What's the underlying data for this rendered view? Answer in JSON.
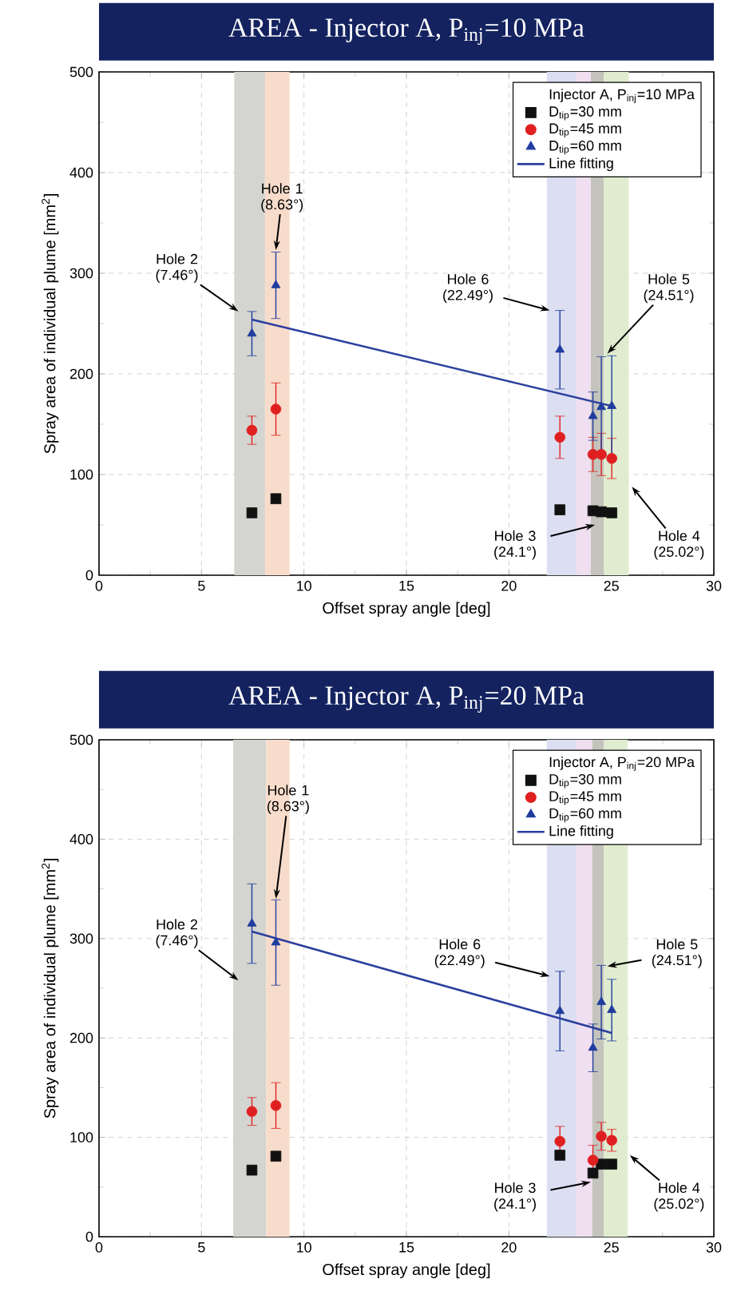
{
  "chart_data": [
    {
      "type": "scatter",
      "title": "AREA - Injector A, P$_{inj}$=10 MPa",
      "xlabel": "Offset spray angle [deg]",
      "ylabel": "Spray area of individual plume [mm$^{2}$]",
      "legend_title": "Injector A, P$_{inj}$=10 MPa",
      "xlim": [
        0,
        30
      ],
      "ylim": [
        0,
        500
      ],
      "xticks": [
        0,
        5,
        10,
        15,
        20,
        25,
        30
      ],
      "yticks": [
        0,
        100,
        200,
        300,
        400,
        500
      ],
      "grid": true,
      "legend": "top right",
      "series": [
        {
          "name": "D$_{tip}$=30 mm",
          "color": "#111111",
          "marker": "square",
          "x": [
            7.46,
            8.63,
            22.49,
            24.1,
            24.51,
            25.02
          ],
          "values": [
            62,
            76,
            65,
            64,
            63,
            62
          ]
        },
        {
          "name": "D$_{tip}$=45 mm",
          "color": "#e02020",
          "marker": "circle",
          "x": [
            7.46,
            8.63,
            22.49,
            24.1,
            24.51,
            25.02
          ],
          "values": [
            144,
            165,
            137,
            120,
            120,
            116
          ],
          "errors": [
            14,
            26,
            21,
            17,
            21,
            20
          ]
        },
        {
          "name": "D$_{tip}$=60 mm",
          "color": "#1f3c9e",
          "marker": "triangle",
          "x": [
            7.46,
            8.63,
            22.49,
            24.1,
            24.51,
            25.02
          ],
          "values": [
            240,
            288,
            224,
            158,
            167,
            168
          ],
          "errors": [
            22,
            33,
            39,
            24,
            50,
            50
          ]
        },
        {
          "name": "Line fitting",
          "type": "line",
          "color": "#2b3f9e",
          "line_style": "solid",
          "x": [
            7.46,
            25.02
          ],
          "values": [
            254,
            168
          ]
        }
      ],
      "bands": [
        {
          "axis": "x",
          "from": 6.6,
          "to": 8.1,
          "color": "#d4d4d0"
        },
        {
          "axis": "x",
          "from": 8.1,
          "to": 9.3,
          "color": "#f8dccb"
        },
        {
          "axis": "x",
          "from": 21.85,
          "to": 23.3,
          "color": "#dcdff2"
        },
        {
          "axis": "x",
          "from": 23.3,
          "to": 24.0,
          "color": "#f0dff0"
        },
        {
          "axis": "x",
          "from": 24.0,
          "to": 24.64,
          "color": "#c4c4bc"
        },
        {
          "axis": "x",
          "from": 24.64,
          "to": 25.85,
          "color": "#dfeccf"
        }
      ],
      "annotations": [
        {
          "text": "Hole 1 (8.63°)",
          "x": 8.63,
          "y": 323
        },
        {
          "text": "Hole 2 (7.46°)",
          "x": 6.8,
          "y": 262
        },
        {
          "text": "Hole 6 (22.49°)",
          "x": 22.0,
          "y": 263
        },
        {
          "text": "Hole 5 (24.51°)",
          "x": 24.8,
          "y": 220
        },
        {
          "text": "Hole 3 (24.1°)",
          "x": 24.2,
          "y": 50
        },
        {
          "text": "Hole 4 (25.02°)",
          "x": 26.0,
          "y": 88
        }
      ]
    },
    {
      "type": "scatter",
      "title": "AREA - Injector A, P$_{inj}$=20 MPa",
      "xlabel": "Offset spray angle [deg]",
      "ylabel": "Spray area of individual plume [mm$^{2}$]",
      "legend_title": "Injector A, P$_{inj}$=20 MPa",
      "xlim": [
        0,
        30
      ],
      "ylim": [
        0,
        500
      ],
      "xticks": [
        0,
        5,
        10,
        15,
        20,
        25,
        30
      ],
      "yticks": [
        0,
        100,
        200,
        300,
        400,
        500
      ],
      "grid": true,
      "legend": "top right",
      "series": [
        {
          "name": "D$_{tip}$=30 mm",
          "color": "#111111",
          "marker": "square",
          "x": [
            7.46,
            8.63,
            22.49,
            24.1,
            24.51,
            25.02
          ],
          "values": [
            67,
            81,
            82,
            64,
            73,
            73
          ]
        },
        {
          "name": "D$_{tip}$=45 mm",
          "color": "#e02020",
          "marker": "circle",
          "x": [
            7.46,
            8.63,
            22.49,
            24.1,
            24.51,
            25.02
          ],
          "values": [
            126,
            132,
            96,
            77,
            101,
            97
          ],
          "errors": [
            14,
            23,
            15,
            15,
            14,
            11
          ]
        },
        {
          "name": "D$_{tip}$=60 mm",
          "color": "#1f3c9e",
          "marker": "triangle",
          "x": [
            7.46,
            8.63,
            22.49,
            24.1,
            24.51,
            25.02
          ],
          "values": [
            315,
            296,
            227,
            190,
            236,
            228
          ],
          "errors": [
            40,
            43,
            40,
            24,
            37,
            31
          ]
        },
        {
          "name": "Line fitting",
          "type": "line",
          "color": "#2b3f9e",
          "line_style": "solid",
          "x": [
            7.46,
            25.02
          ],
          "values": [
            307,
            205
          ]
        }
      ],
      "bands": [
        {
          "axis": "x",
          "from": 6.55,
          "to": 8.15,
          "color": "#d4d4d0"
        },
        {
          "axis": "x",
          "from": 8.15,
          "to": 9.3,
          "color": "#f8dccb"
        },
        {
          "axis": "x",
          "from": 21.85,
          "to": 23.3,
          "color": "#dcdff2"
        },
        {
          "axis": "x",
          "from": 23.3,
          "to": 24.07,
          "color": "#f0dff0"
        },
        {
          "axis": "x",
          "from": 24.07,
          "to": 24.64,
          "color": "#c4c4bc"
        },
        {
          "axis": "x",
          "from": 24.64,
          "to": 25.8,
          "color": "#dfeccf"
        }
      ],
      "annotations": [
        {
          "text": "Hole 1 (8.63°)",
          "x": 8.63,
          "y": 340
        },
        {
          "text": "Hole 2 (7.46°)",
          "x": 6.8,
          "y": 258
        },
        {
          "text": "Hole 6 (22.49°)",
          "x": 22.0,
          "y": 262
        },
        {
          "text": "Hole 5 (24.51°)",
          "x": 24.8,
          "y": 272
        },
        {
          "text": "Hole 3 (24.1°)",
          "x": 24.0,
          "y": 55
        },
        {
          "text": "Hole 4 (25.02°)",
          "x": 25.9,
          "y": 82
        }
      ]
    }
  ]
}
